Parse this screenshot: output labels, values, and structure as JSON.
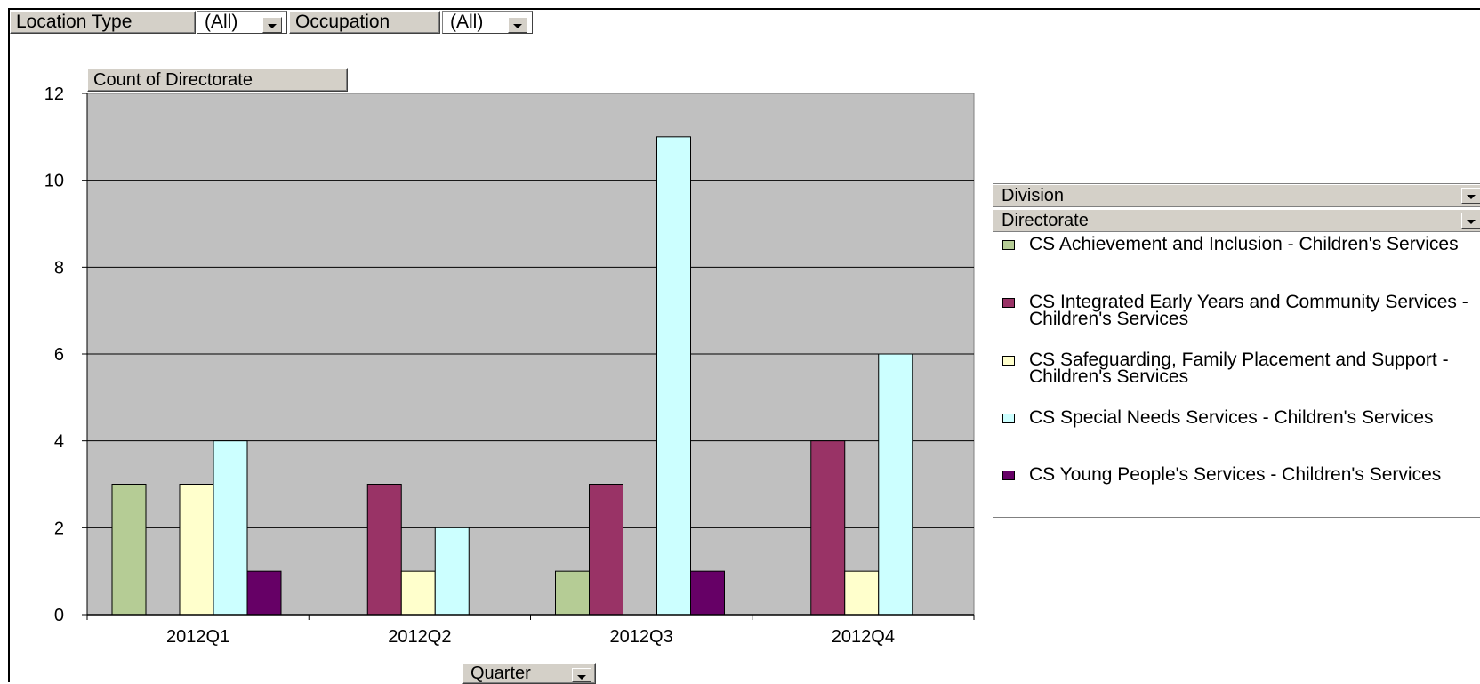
{
  "filters": {
    "location_type_label": "Location Type",
    "location_type_value": "(All)",
    "occupation_label": "Occupation",
    "occupation_value": "(All)"
  },
  "data_field_label": "Count of Directorate",
  "category_field_label": "Quarter",
  "legend": {
    "division_label": "Division",
    "directorate_label": "Directorate"
  },
  "chart_data": {
    "type": "bar",
    "categories": [
      "2012Q1",
      "2012Q2",
      "2012Q3",
      "2012Q4"
    ],
    "ylim": [
      0,
      12
    ],
    "yticks": [
      0,
      2,
      4,
      6,
      8,
      10,
      12
    ],
    "grid": true,
    "legend_position": "right",
    "series": [
      {
        "name": "CS Achievement and Inclusion - Children's Services",
        "color": "#b5cc95",
        "values": [
          3,
          0,
          1,
          0
        ]
      },
      {
        "name": "CS Integrated Early Years and Community Services - Children's Services",
        "color": "#993366",
        "values": [
          0,
          3,
          3,
          4
        ]
      },
      {
        "name": "CS Safeguarding, Family Placement and Support - Children's Services",
        "color": "#ffffcc",
        "values": [
          3,
          1,
          0,
          1
        ]
      },
      {
        "name": "CS Special Needs Services - Children's Services",
        "color": "#ccffff",
        "values": [
          4,
          2,
          11,
          6
        ]
      },
      {
        "name": "CS Young People's Services - Children's Services",
        "color": "#660066",
        "values": [
          1,
          0,
          1,
          0
        ]
      }
    ]
  }
}
